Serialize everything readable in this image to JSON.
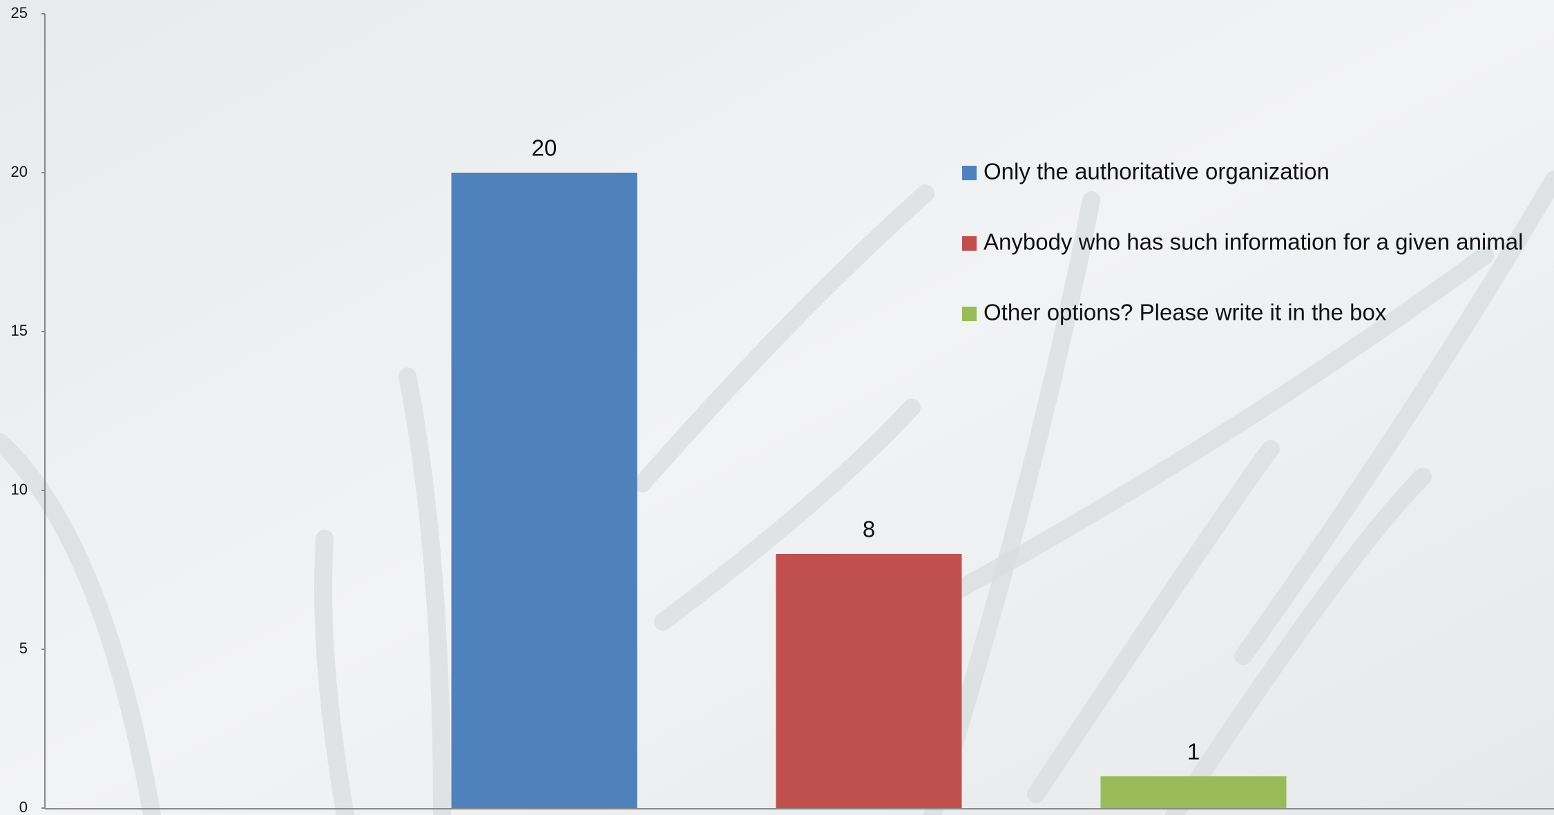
{
  "chart_data": {
    "type": "bar",
    "categories": [
      null
    ],
    "series": [
      {
        "name": "Only the authoritative organization",
        "color": "#4f81bd",
        "values": [
          20
        ]
      },
      {
        "name": "Anybody who has such information for a given animal",
        "color": "#c0504d",
        "values": [
          8
        ]
      },
      {
        "name": "Other options? Please write it in the box",
        "color": "#9bbb59",
        "values": [
          1
        ]
      }
    ],
    "ylim": [
      0,
      25
    ],
    "yticks": [
      0,
      5,
      10,
      15,
      20,
      25
    ],
    "grid": false,
    "legend": "upper right",
    "data_labels": true
  }
}
